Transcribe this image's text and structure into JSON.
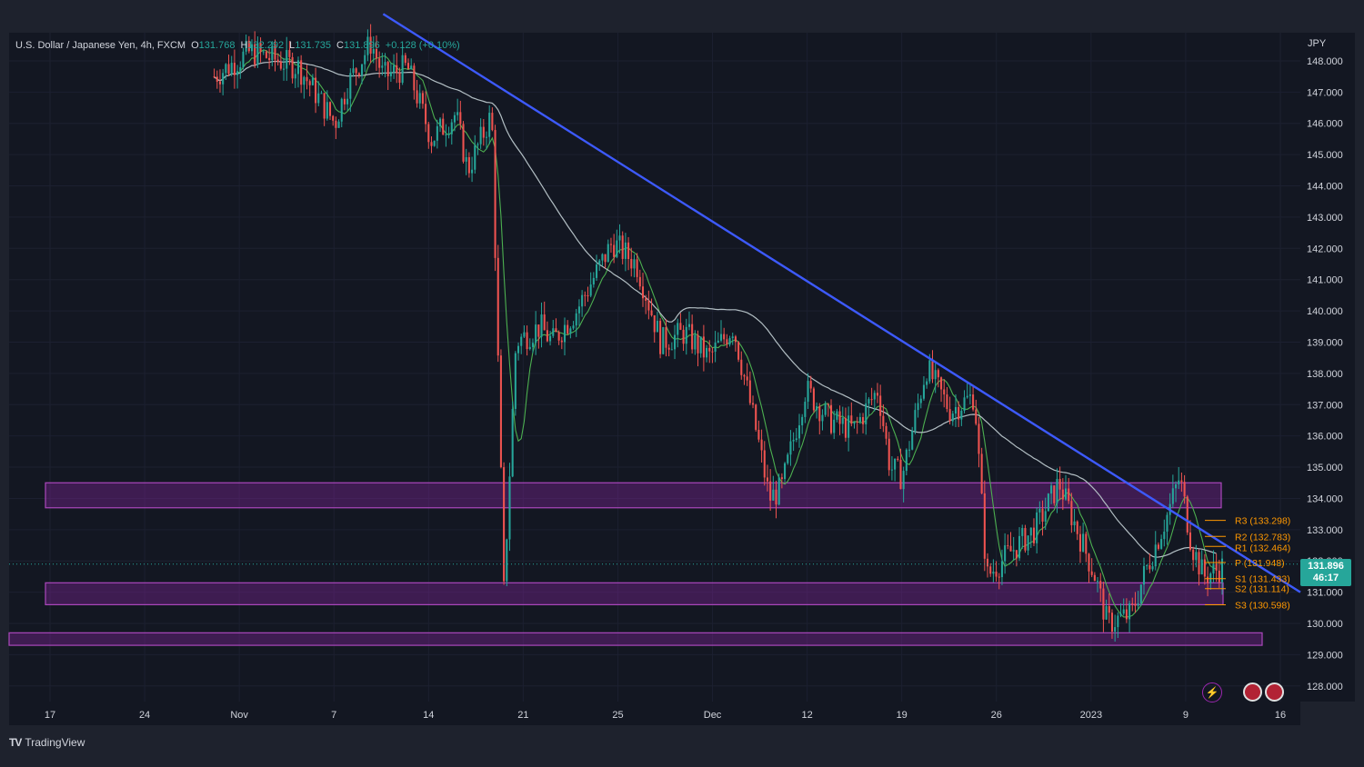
{
  "header": {
    "symbol": "U.S. Dollar / Japanese Yen, 4h, FXCM",
    "open_label": "O",
    "open": "131.768",
    "high_label": "H",
    "high": "132.292",
    "low_label": "L",
    "low": "131.735",
    "close_label": "C",
    "close": "131.896",
    "change": "+0.128 (+0.10%)"
  },
  "currency": "JPY",
  "last_price": {
    "value": "131.896",
    "countdown": "46:17"
  },
  "branding": {
    "name": "TradingView"
  },
  "colors": {
    "background": "#131722",
    "frame": "#1e222d",
    "up": "#26a69a",
    "down": "#ef5350",
    "trendline": "#3d5afe",
    "ma_fast": "#4caf50",
    "ma_slow": "#b2bec3",
    "zone": "#8e24aa",
    "pivot": "#ff9800"
  },
  "chart_data": {
    "type": "candlestick",
    "ylim": [
      127.5,
      148.9
    ],
    "yticks": [
      "148.000",
      "147.000",
      "146.000",
      "145.000",
      "144.000",
      "143.000",
      "142.000",
      "141.000",
      "140.000",
      "139.000",
      "138.000",
      "137.000",
      "136.000",
      "135.000",
      "134.000",
      "133.000",
      "132.000",
      "131.000",
      "130.000",
      "129.000",
      "128.000"
    ],
    "xticks": [
      "17",
      "24",
      "Nov",
      "7",
      "14",
      "21",
      "25",
      "Dec",
      "12",
      "19",
      "26",
      "2023",
      "9",
      "16"
    ],
    "price_path": [
      [
        17,
        147.5
      ],
      [
        20,
        148.3
      ],
      [
        24,
        147.8
      ],
      [
        27,
        146.0
      ],
      [
        28,
        147.2
      ],
      [
        30,
        148.6
      ],
      [
        31,
        147.5
      ],
      [
        33,
        147.8
      ],
      [
        35,
        145.5
      ],
      [
        37,
        146.3
      ],
      [
        38,
        144.5
      ],
      [
        40,
        146.3
      ],
      [
        41,
        131.0
      ],
      [
        42,
        139.0
      ],
      [
        44,
        139.5
      ],
      [
        45,
        139.0
      ],
      [
        47,
        140.0
      ],
      [
        50,
        142.2
      ],
      [
        52,
        141.5
      ],
      [
        54,
        139.0
      ],
      [
        56,
        139.3
      ],
      [
        58,
        138.5
      ],
      [
        60,
        139.5
      ],
      [
        62,
        136.0
      ],
      [
        63,
        134.0
      ],
      [
        64,
        134.3
      ],
      [
        66,
        137.5
      ],
      [
        68,
        136.5
      ],
      [
        70,
        136.2
      ],
      [
        72,
        137.5
      ],
      [
        73,
        135.0
      ],
      [
        74,
        134.7
      ],
      [
        76,
        138.2
      ],
      [
        78,
        136.8
      ],
      [
        80,
        137.3
      ],
      [
        81,
        131.5
      ],
      [
        83,
        132.3
      ],
      [
        85,
        133.0
      ],
      [
        87,
        134.5
      ],
      [
        89,
        132.5
      ],
      [
        90,
        131.5
      ],
      [
        91,
        130.0
      ],
      [
        93,
        130.3
      ],
      [
        94,
        131.5
      ],
      [
        96,
        133.5
      ],
      [
        97,
        134.7
      ],
      [
        98,
        132.5
      ],
      [
        99,
        131.5
      ],
      [
        101,
        131.9
      ]
    ],
    "trendline": {
      "from": [
        31,
        149.5
      ],
      "to": [
        107,
        131.0
      ]
    },
    "zones": [
      {
        "from": 134.5,
        "to": 133.7
      },
      {
        "from": 131.3,
        "to": 130.6
      },
      {
        "from": 129.7,
        "to": 129.3
      }
    ],
    "pivots": [
      {
        "label": "R3 (133.298)",
        "value": 133.298
      },
      {
        "label": "R2 (132.783)",
        "value": 132.783
      },
      {
        "label": "R1 (132.464)",
        "value": 132.464
      },
      {
        "label": "P (131.948)",
        "value": 131.948
      },
      {
        "label": "S1 (131.433)",
        "value": 131.433
      },
      {
        "label": "S2 (131.114)",
        "value": 131.114
      },
      {
        "label": "S3 (130.598)",
        "value": 130.598
      }
    ],
    "current_price": 131.896,
    "grid": true
  }
}
